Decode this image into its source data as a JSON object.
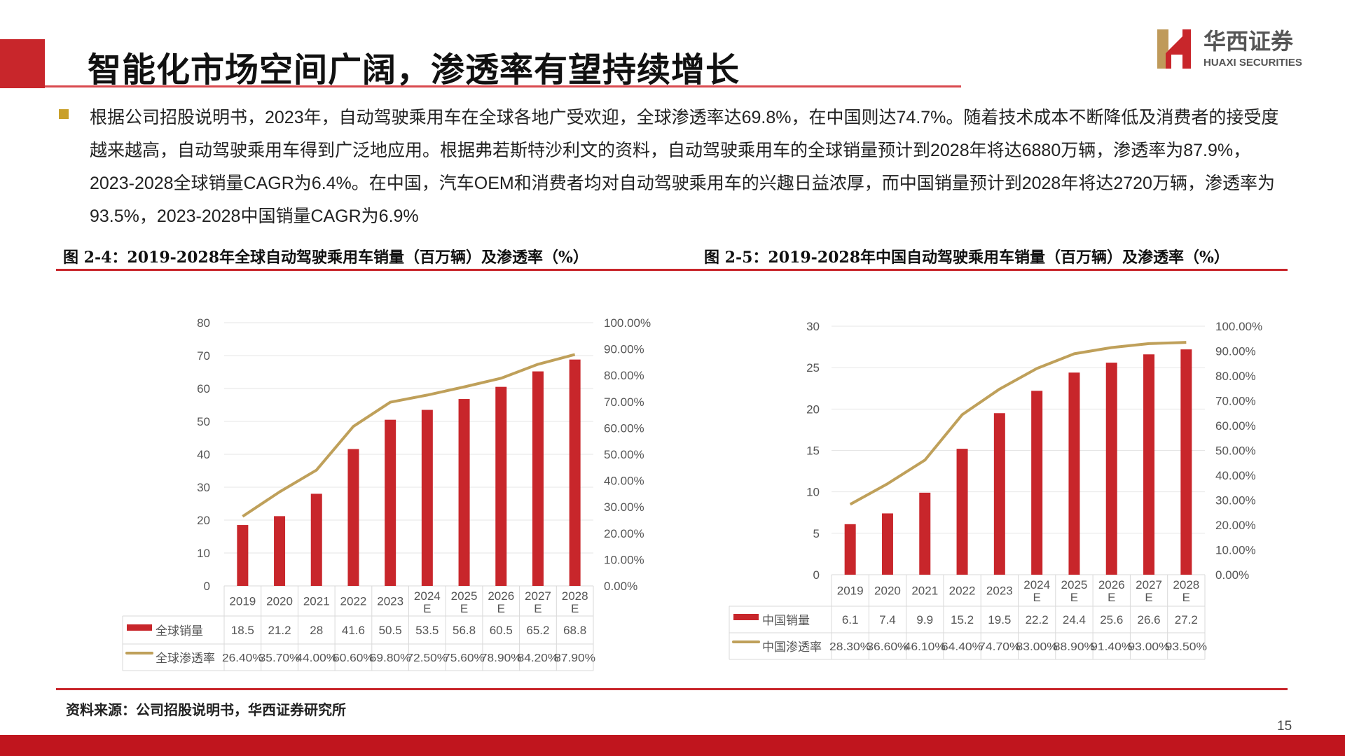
{
  "header": {
    "title": "智能化市场空间广阔，渗透率有望持续增长",
    "logo_cn": "华西证券",
    "logo_en": "HUAXI SECURITIES"
  },
  "body": {
    "paragraph": "根据公司招股说明书，2023年，自动驾驶乘用车在全球各地广受欢迎，全球渗透率达69.8%，在中国则达74.7%。随着技术成本不断降低及消费者的接受度越来越高，自动驾驶乘用车得到广泛地应用。根据弗若斯特沙利文的资料，自动驾驶乘用车的全球销量预计到2028年将达6880万辆，渗透率为87.9%，2023-2028全球销量CAGR为6.4%。在中国，汽车OEM和消费者均对自动驾驶乘用车的兴趣日益浓厚，而中国销量预计到2028年将达2720万辆，渗透率为93.5%，2023-2028中国销量CAGR为6.9%"
  },
  "captions": {
    "left": "图 2-4：2019-2028年全球自动驾驶乘用车销量（百万辆）及渗透率（%）",
    "right": "图 2-5：2019-2028年中国自动驾驶乘用车销量（百万辆）及渗透率（%）"
  },
  "source": "资料来源：公司招股说明书，华西证券研究所",
  "page_number": "15",
  "colors": {
    "bar": "#C8262B",
    "line": "#BFA05A",
    "accent": "#C8262B"
  },
  "chart_data": [
    {
      "type": "bar+line",
      "categories": [
        "2019",
        "2020",
        "2021",
        "2022",
        "2023",
        "2024E",
        "2025E",
        "2026E",
        "2027E",
        "2028E"
      ],
      "series": [
        {
          "name": "全球销量",
          "type": "bar",
          "axis": "left",
          "values": [
            18.5,
            21.2,
            28,
            41.6,
            50.5,
            53.5,
            56.8,
            60.5,
            65.2,
            68.8
          ],
          "labels": [
            "18.5",
            "21.2",
            "28",
            "41.6",
            "50.5",
            "53.5",
            "56.8",
            "60.5",
            "65.2",
            "68.8"
          ]
        },
        {
          "name": "全球渗透率",
          "type": "line",
          "axis": "right",
          "values": [
            26.4,
            35.7,
            44.0,
            60.6,
            69.8,
            72.5,
            75.6,
            78.9,
            84.2,
            87.9
          ],
          "labels": [
            "26.40%",
            "35.70%",
            "44.00%",
            "60.60%",
            "69.80%",
            "72.50%",
            "75.60%",
            "78.90%",
            "84.20%",
            "87.90%"
          ]
        }
      ],
      "ylim": [
        0,
        80
      ],
      "yticks": [
        "0",
        "10",
        "20",
        "30",
        "40",
        "50",
        "60",
        "70",
        "80"
      ],
      "y2lim": [
        0,
        100
      ],
      "y2ticks": [
        "0.00%",
        "10.00%",
        "20.00%",
        "30.00%",
        "40.00%",
        "50.00%",
        "60.00%",
        "70.00%",
        "80.00%",
        "90.00%",
        "100.00%"
      ]
    },
    {
      "type": "bar+line",
      "categories": [
        "2019",
        "2020",
        "2021",
        "2022",
        "2023",
        "2024E",
        "2025E",
        "2026E",
        "2027E",
        "2028E"
      ],
      "series": [
        {
          "name": "中国销量",
          "type": "bar",
          "axis": "left",
          "values": [
            6.1,
            7.4,
            9.9,
            15.2,
            19.5,
            22.2,
            24.4,
            25.6,
            26.6,
            27.2
          ],
          "labels": [
            "6.1",
            "7.4",
            "9.9",
            "15.2",
            "19.5",
            "22.2",
            "24.4",
            "25.6",
            "26.6",
            "27.2"
          ]
        },
        {
          "name": "中国渗透率",
          "type": "line",
          "axis": "right",
          "values": [
            28.3,
            36.6,
            46.1,
            64.4,
            74.7,
            83.0,
            88.9,
            91.4,
            93.0,
            93.5
          ],
          "labels": [
            "28.30%",
            "36.60%",
            "46.10%",
            "64.40%",
            "74.70%",
            "83.00%",
            "88.90%",
            "91.40%",
            "93.00%",
            "93.50%"
          ]
        }
      ],
      "ylim": [
        0,
        30
      ],
      "yticks": [
        "0",
        "5",
        "10",
        "15",
        "20",
        "25",
        "30"
      ],
      "y2lim": [
        0,
        100
      ],
      "y2ticks": [
        "0.00%",
        "10.00%",
        "20.00%",
        "30.00%",
        "40.00%",
        "50.00%",
        "60.00%",
        "70.00%",
        "80.00%",
        "90.00%",
        "100.00%"
      ]
    }
  ]
}
